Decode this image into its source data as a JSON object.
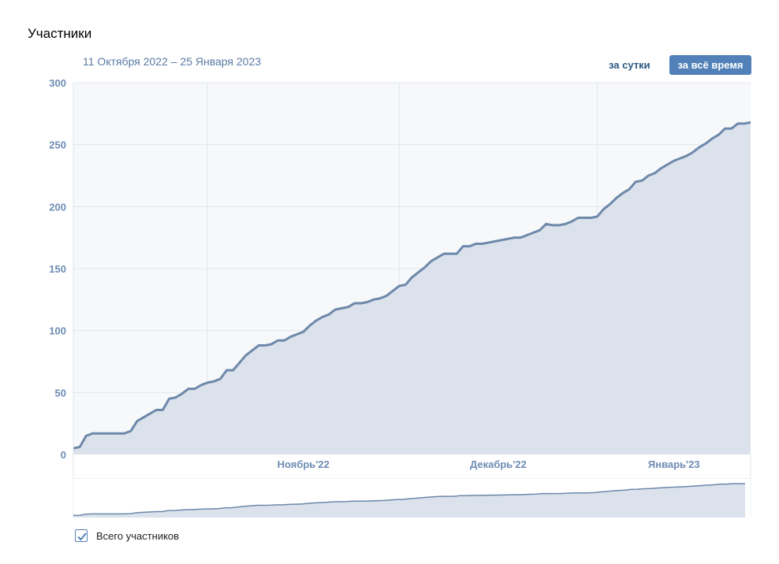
{
  "title": "Участники",
  "date_range": "11 Октября 2022 – 25 Января 2023",
  "buttons": {
    "per_day": "за сутки",
    "all_time": "за всё время"
  },
  "legend": {
    "label": "Всего участников",
    "checked": true
  },
  "colors": {
    "line": "#6d88aa",
    "fill": "#dbe2ec",
    "plot_bg": "#f7f8fa",
    "grid": "#e1e6ed",
    "accent": "#5181b8"
  },
  "chart_data": {
    "type": "area",
    "title": "Участники",
    "ylim": [
      0,
      300
    ],
    "yticks": [
      0,
      50,
      100,
      150,
      200,
      250,
      300
    ],
    "x_start": "2022-10-11",
    "x_end": "2023-01-25",
    "month_labels": [
      {
        "label": "Ноябрь'22",
        "date": "2022-11-01"
      },
      {
        "label": "Декабрь'22",
        "date": "2022-12-01"
      },
      {
        "label": "Январь'23",
        "date": "2023-01-01"
      }
    ],
    "series": [
      {
        "name": "Всего участников",
        "points": [
          [
            "2022-10-11",
            5
          ],
          [
            "2022-10-12",
            6
          ],
          [
            "2022-10-13",
            15
          ],
          [
            "2022-10-14",
            17
          ],
          [
            "2022-10-18",
            17
          ],
          [
            "2022-10-19",
            17
          ],
          [
            "2022-10-20",
            19
          ],
          [
            "2022-10-21",
            27
          ],
          [
            "2022-10-22",
            30
          ],
          [
            "2022-10-23",
            33
          ],
          [
            "2022-10-24",
            36
          ],
          [
            "2022-10-25",
            36
          ],
          [
            "2022-10-26",
            45
          ],
          [
            "2022-10-27",
            46
          ],
          [
            "2022-10-28",
            49
          ],
          [
            "2022-10-29",
            53
          ],
          [
            "2022-10-30",
            53
          ],
          [
            "2022-10-31",
            56
          ],
          [
            "2022-11-01",
            58
          ],
          [
            "2022-11-02",
            59
          ],
          [
            "2022-11-03",
            61
          ],
          [
            "2022-11-04",
            68
          ],
          [
            "2022-11-05",
            68
          ],
          [
            "2022-11-06",
            74
          ],
          [
            "2022-11-07",
            80
          ],
          [
            "2022-11-08",
            84
          ],
          [
            "2022-11-09",
            88
          ],
          [
            "2022-11-10",
            88
          ],
          [
            "2022-11-11",
            89
          ],
          [
            "2022-11-12",
            92
          ],
          [
            "2022-11-13",
            92
          ],
          [
            "2022-11-14",
            95
          ],
          [
            "2022-11-15",
            97
          ],
          [
            "2022-11-16",
            99
          ],
          [
            "2022-11-17",
            104
          ],
          [
            "2022-11-18",
            108
          ],
          [
            "2022-11-19",
            111
          ],
          [
            "2022-11-20",
            113
          ],
          [
            "2022-11-21",
            117
          ],
          [
            "2022-11-22",
            118
          ],
          [
            "2022-11-23",
            119
          ],
          [
            "2022-11-24",
            122
          ],
          [
            "2022-11-25",
            122
          ],
          [
            "2022-11-26",
            123
          ],
          [
            "2022-11-27",
            125
          ],
          [
            "2022-11-28",
            126
          ],
          [
            "2022-11-29",
            128
          ],
          [
            "2022-11-30",
            132
          ],
          [
            "2022-12-01",
            136
          ],
          [
            "2022-12-02",
            137
          ],
          [
            "2022-12-03",
            143
          ],
          [
            "2022-12-04",
            147
          ],
          [
            "2022-12-05",
            151
          ],
          [
            "2022-12-06",
            156
          ],
          [
            "2022-12-07",
            159
          ],
          [
            "2022-12-08",
            162
          ],
          [
            "2022-12-09",
            162
          ],
          [
            "2022-12-10",
            162
          ],
          [
            "2022-12-11",
            168
          ],
          [
            "2022-12-12",
            168
          ],
          [
            "2022-12-13",
            170
          ],
          [
            "2022-12-14",
            170
          ],
          [
            "2022-12-15",
            171
          ],
          [
            "2022-12-16",
            172
          ],
          [
            "2022-12-17",
            173
          ],
          [
            "2022-12-18",
            174
          ],
          [
            "2022-12-19",
            175
          ],
          [
            "2022-12-20",
            175
          ],
          [
            "2022-12-21",
            177
          ],
          [
            "2022-12-22",
            179
          ],
          [
            "2022-12-23",
            181
          ],
          [
            "2022-12-24",
            186
          ],
          [
            "2022-12-25",
            185
          ],
          [
            "2022-12-26",
            185
          ],
          [
            "2022-12-27",
            186
          ],
          [
            "2022-12-28",
            188
          ],
          [
            "2022-12-29",
            191
          ],
          [
            "2022-12-30",
            191
          ],
          [
            "2022-12-31",
            191
          ],
          [
            "2023-01-01",
            192
          ],
          [
            "2023-01-02",
            198
          ],
          [
            "2023-01-03",
            202
          ],
          [
            "2023-01-04",
            207
          ],
          [
            "2023-01-05",
            211
          ],
          [
            "2023-01-06",
            214
          ],
          [
            "2023-01-07",
            220
          ],
          [
            "2023-01-08",
            221
          ],
          [
            "2023-01-09",
            225
          ],
          [
            "2023-01-10",
            227
          ],
          [
            "2023-01-11",
            231
          ],
          [
            "2023-01-12",
            234
          ],
          [
            "2023-01-13",
            237
          ],
          [
            "2023-01-14",
            239
          ],
          [
            "2023-01-15",
            241
          ],
          [
            "2023-01-16",
            244
          ],
          [
            "2023-01-17",
            248
          ],
          [
            "2023-01-18",
            251
          ],
          [
            "2023-01-19",
            255
          ],
          [
            "2023-01-20",
            258
          ],
          [
            "2023-01-21",
            263
          ],
          [
            "2023-01-22",
            263
          ],
          [
            "2023-01-23",
            267
          ],
          [
            "2023-01-24",
            267
          ],
          [
            "2023-01-25",
            268
          ]
        ]
      }
    ]
  }
}
